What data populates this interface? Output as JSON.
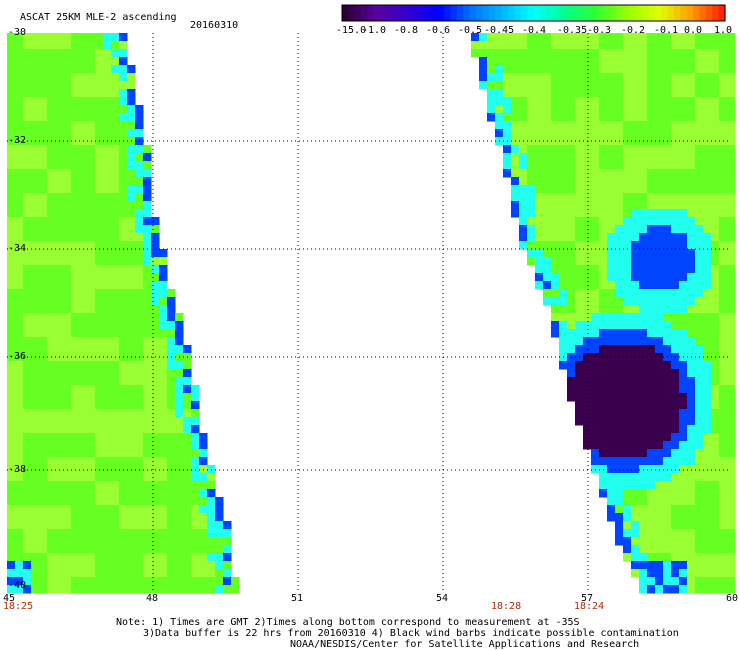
{
  "header": {
    "title": "ASCAT 25KM MLE-2 ascending",
    "date": "20160310"
  },
  "colorbar": {
    "labels": [
      "-15.0",
      "-1.0",
      "-0.8",
      "-0.6",
      "-0.5",
      "-0.45",
      "-0.4",
      "-0.35",
      "-0.3",
      "-0.2",
      "-0.1",
      "0.0",
      "1.0"
    ],
    "colors": [
      "#2a0035",
      "#5a00a0",
      "#3000d0",
      "#0000ff",
      "#0070ff",
      "#00b8ff",
      "#00ffff",
      "#00ff90",
      "#30ff30",
      "#98ff00",
      "#e0ff00",
      "#ffa000",
      "#ff2000"
    ]
  },
  "map": {
    "lat_labels": [
      "-30",
      "-32",
      "-34",
      "-36",
      "-38",
      "-40"
    ],
    "lon_labels": [
      "45",
      "48",
      "51",
      "54",
      "57",
      "60"
    ],
    "colors": {
      "background": "#ffffff",
      "field_base": "#66ff22",
      "field_light": "#99ff33",
      "cyan": "#22ffee",
      "blue": "#0044ff",
      "deep": "#3a0050"
    }
  },
  "time_labels": [
    "18:25",
    "18:28",
    "18:24"
  ],
  "notes": {
    "line1": "Note: 1) Times are GMT 2)Times along bottom correspond to measurement at -35S",
    "line2": "3)Data buffer is 22 hrs from 20160310 4) Black wind barbs indicate possible contamination",
    "line3": "NOAA/NESDIS/Center for Satellite Applications and Research"
  }
}
